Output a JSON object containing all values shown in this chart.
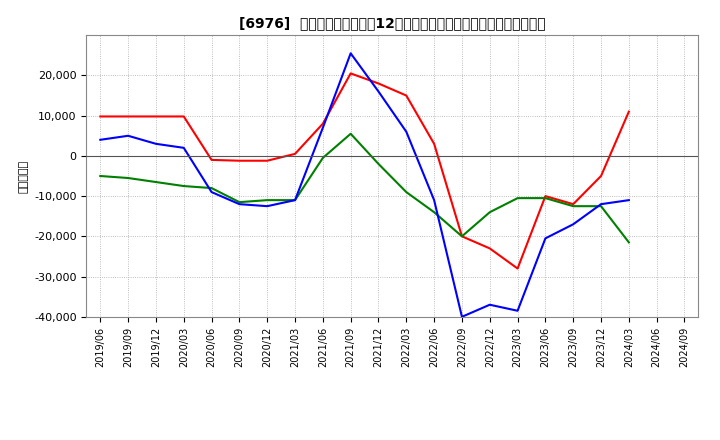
{
  "title": "[6976]  キャッシュフローの12か月移動合計の対前年同期増減額の推移",
  "ylabel": "（百万円）",
  "background_color": "#ffffff",
  "grid_color": "#aaaaaa",
  "x_labels": [
    "2019/06",
    "2019/09",
    "2019/12",
    "2020/03",
    "2020/06",
    "2020/09",
    "2020/12",
    "2021/03",
    "2021/06",
    "2021/09",
    "2021/12",
    "2022/03",
    "2022/06",
    "2022/09",
    "2022/12",
    "2023/03",
    "2023/06",
    "2023/09",
    "2023/12",
    "2024/03",
    "2024/06",
    "2024/09"
  ],
  "operating_cf": [
    9800,
    9800,
    9800,
    9800,
    -1000,
    -1200,
    -1200,
    500,
    8000,
    20500,
    18000,
    15000,
    3000,
    -20000,
    -23000,
    -28000,
    -10000,
    -12000,
    -5000,
    11000,
    null,
    null
  ],
  "investing_cf": [
    -5000,
    -5500,
    -6500,
    -7500,
    -8000,
    -11500,
    -11000,
    -11000,
    -500,
    5500,
    -2000,
    -9000,
    -14000,
    -20000,
    -14000,
    -10500,
    -10500,
    -12500,
    -12500,
    -21500,
    null,
    null
  ],
  "free_cf": [
    4000,
    5000,
    3000,
    2000,
    -9000,
    -12000,
    -12500,
    -11000,
    7000,
    25500,
    16000,
    6000,
    -11000,
    -40000,
    -37000,
    -38500,
    -20500,
    -17000,
    -12000,
    -11000,
    null,
    null
  ],
  "operating_color": "#ff0000",
  "investing_color": "#008000",
  "free_color": "#0000ff",
  "ylim": [
    -40000,
    30000
  ],
  "yticks": [
    -40000,
    -30000,
    -20000,
    -10000,
    0,
    10000,
    20000
  ]
}
